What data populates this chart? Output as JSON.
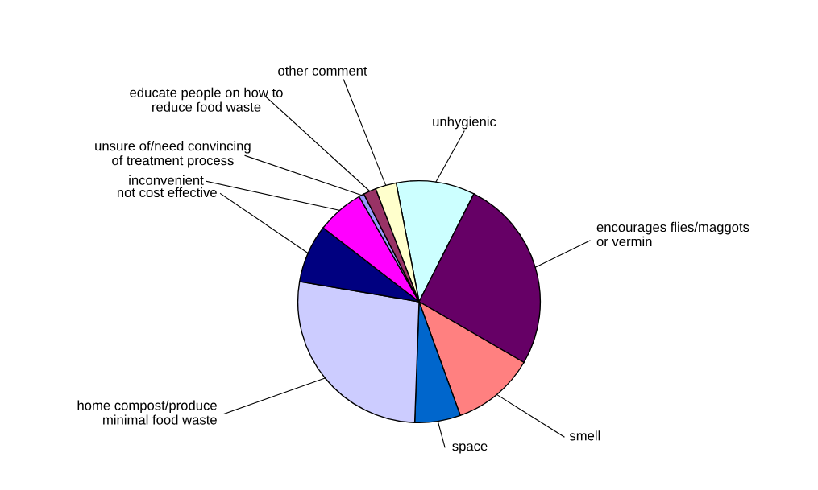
{
  "chart_data": {
    "type": "pie",
    "categories": [
      "unhygienic",
      "encourages flies/maggots\nor vermin",
      "smell",
      "space",
      "home compost/produce\nminimal food waste",
      "not cost effective",
      "inconvenient",
      "unsure of/need convincing\nof treatment process",
      "educate people on how to\nreduce food waste",
      "other comment"
    ],
    "values": [
      10.5,
      25.9,
      11.1,
      6.1,
      27.1,
      7.8,
      6.3,
      0.7,
      1.7,
      2.8
    ],
    "colors": [
      "#ccffff",
      "#660066",
      "#ff8080",
      "#0066cc",
      "#ccccff",
      "#000080",
      "#ff00ff",
      "#9999ff",
      "#993366",
      "#ffffcc"
    ],
    "legend": false
  }
}
